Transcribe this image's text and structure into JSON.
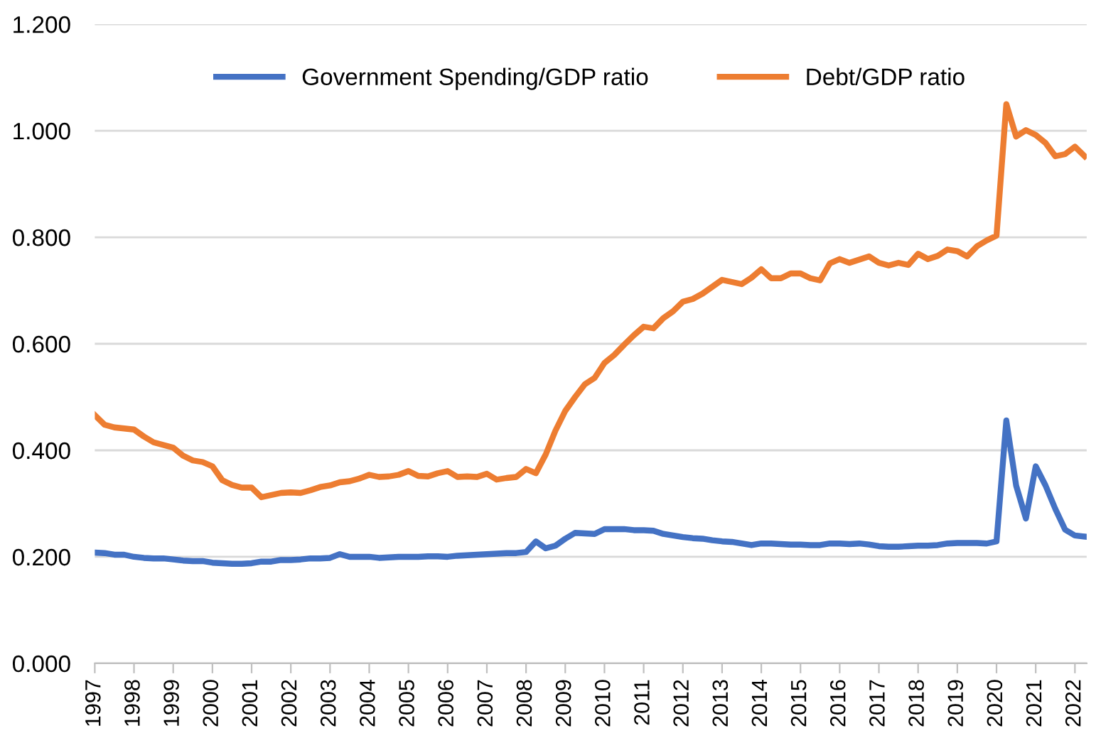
{
  "chart_data": {
    "type": "line",
    "legend": "top",
    "grid": "y",
    "marker": "none",
    "line_style": "solid",
    "x": [
      1997.0,
      1997.25,
      1997.5,
      1997.75,
      1998.0,
      1998.25,
      1998.5,
      1998.75,
      1999.0,
      1999.25,
      1999.5,
      1999.75,
      2000.0,
      2000.25,
      2000.5,
      2000.75,
      2001.0,
      2001.25,
      2001.5,
      2001.75,
      2002.0,
      2002.25,
      2002.5,
      2002.75,
      2003.0,
      2003.25,
      2003.5,
      2003.75,
      2004.0,
      2004.25,
      2004.5,
      2004.75,
      2005.0,
      2005.25,
      2005.5,
      2005.75,
      2006.0,
      2006.25,
      2006.5,
      2006.75,
      2007.0,
      2007.25,
      2007.5,
      2007.75,
      2008.0,
      2008.25,
      2008.5,
      2008.75,
      2009.0,
      2009.25,
      2009.5,
      2009.75,
      2010.0,
      2010.25,
      2010.5,
      2010.75,
      2011.0,
      2011.25,
      2011.5,
      2011.75,
      2012.0,
      2012.25,
      2012.5,
      2012.75,
      2013.0,
      2013.25,
      2013.5,
      2013.75,
      2014.0,
      2014.25,
      2014.5,
      2014.75,
      2015.0,
      2015.25,
      2015.5,
      2015.75,
      2016.0,
      2016.25,
      2016.5,
      2016.75,
      2017.0,
      2017.25,
      2017.5,
      2017.75,
      2018.0,
      2018.25,
      2018.5,
      2018.75,
      2019.0,
      2019.25,
      2019.5,
      2019.75,
      2020.0,
      2020.25,
      2020.5,
      2020.75,
      2021.0,
      2021.25,
      2021.5,
      2021.75,
      2022.0,
      2022.25
    ],
    "xlim": [
      1997,
      2022.3
    ],
    "xticks": [
      1997,
      1998,
      1999,
      2000,
      2001,
      2002,
      2003,
      2004,
      2005,
      2006,
      2007,
      2008,
      2009,
      2010,
      2011,
      2012,
      2013,
      2014,
      2015,
      2016,
      2017,
      2018,
      2019,
      2020,
      2021,
      2022
    ],
    "ylim": [
      0,
      1.2
    ],
    "yticks": [
      {
        "value": 0,
        "label": "0.000"
      },
      {
        "value": 0.2,
        "label": "0.200"
      },
      {
        "value": 0.4,
        "label": "0.400"
      },
      {
        "value": 0.6,
        "label": "0.600"
      },
      {
        "value": 0.8,
        "label": "0.800"
      },
      {
        "value": 1.0,
        "label": "1.000"
      },
      {
        "value": 1.2,
        "label": "1.200"
      }
    ],
    "series": [
      {
        "name": "Government Spending/GDP ratio",
        "color": "#4472c4",
        "values": [
          0.208,
          0.207,
          0.204,
          0.204,
          0.2,
          0.198,
          0.197,
          0.197,
          0.195,
          0.193,
          0.192,
          0.192,
          0.189,
          0.188,
          0.187,
          0.187,
          0.188,
          0.191,
          0.191,
          0.194,
          0.194,
          0.195,
          0.197,
          0.197,
          0.198,
          0.205,
          0.2,
          0.2,
          0.2,
          0.198,
          0.199,
          0.2,
          0.2,
          0.2,
          0.201,
          0.201,
          0.2,
          0.202,
          0.203,
          0.204,
          0.205,
          0.206,
          0.207,
          0.207,
          0.209,
          0.229,
          0.216,
          0.221,
          0.234,
          0.245,
          0.244,
          0.243,
          0.252,
          0.252,
          0.252,
          0.25,
          0.25,
          0.249,
          0.243,
          0.24,
          0.237,
          0.235,
          0.234,
          0.231,
          0.229,
          0.228,
          0.225,
          0.222,
          0.225,
          0.225,
          0.224,
          0.223,
          0.223,
          0.222,
          0.222,
          0.225,
          0.225,
          0.224,
          0.225,
          0.223,
          0.22,
          0.219,
          0.219,
          0.22,
          0.221,
          0.221,
          0.222,
          0.225,
          0.226,
          0.226,
          0.226,
          0.225,
          0.229,
          0.456,
          0.334,
          0.272,
          0.37,
          0.334,
          0.29,
          0.251,
          0.24,
          0.238
        ]
      },
      {
        "name": "Debt/GDP ratio",
        "color": "#ed7d31",
        "values": [
          0.466,
          0.448,
          0.443,
          0.441,
          0.439,
          0.426,
          0.415,
          0.41,
          0.405,
          0.39,
          0.381,
          0.378,
          0.37,
          0.344,
          0.335,
          0.33,
          0.33,
          0.312,
          0.316,
          0.32,
          0.321,
          0.32,
          0.325,
          0.331,
          0.334,
          0.34,
          0.342,
          0.347,
          0.354,
          0.35,
          0.351,
          0.354,
          0.361,
          0.352,
          0.351,
          0.357,
          0.361,
          0.35,
          0.351,
          0.35,
          0.356,
          0.345,
          0.348,
          0.35,
          0.365,
          0.357,
          0.392,
          0.437,
          0.474,
          0.5,
          0.524,
          0.536,
          0.564,
          0.579,
          0.598,
          0.616,
          0.632,
          0.629,
          0.648,
          0.661,
          0.679,
          0.684,
          0.694,
          0.707,
          0.72,
          0.716,
          0.712,
          0.724,
          0.74,
          0.723,
          0.723,
          0.732,
          0.732,
          0.723,
          0.719,
          0.751,
          0.759,
          0.752,
          0.758,
          0.764,
          0.752,
          0.747,
          0.752,
          0.748,
          0.769,
          0.759,
          0.765,
          0.777,
          0.774,
          0.764,
          0.783,
          0.794,
          0.803,
          1.05,
          0.989,
          1.001,
          0.992,
          0.977,
          0.952,
          0.956,
          0.97,
          0.952
        ]
      }
    ]
  }
}
